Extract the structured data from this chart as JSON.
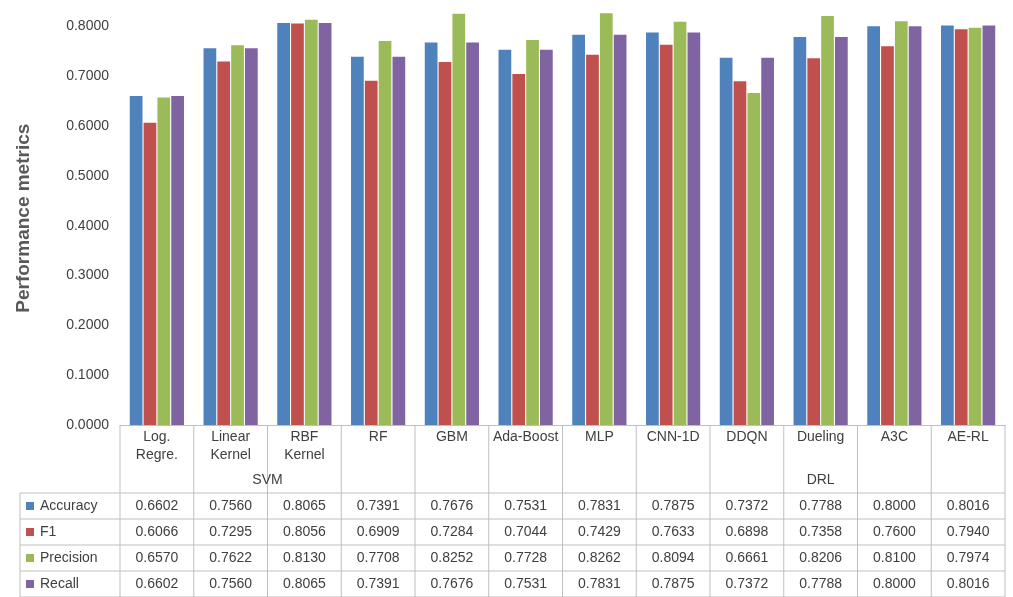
{
  "chart_data": {
    "type": "bar",
    "ylabel": "Performance metrics",
    "categories": [
      "Log. Regre.",
      "Linear Kernel",
      "RBF Kernel",
      "RF",
      "GBM",
      "Ada-Boost",
      "MLP",
      "CNN-1D",
      "DDQN",
      "Dueling",
      "A3C",
      "AE-RL"
    ],
    "series": [
      {
        "name": "Accuracy",
        "color": "#4f81bd",
        "values": [
          0.6602,
          0.756,
          0.8065,
          0.7391,
          0.7676,
          0.7531,
          0.7831,
          0.7875,
          0.7372,
          0.7788,
          0.8,
          0.8016
        ],
        "value_labels": [
          "0.6602",
          "0.7560",
          "0.8065",
          "0.7391",
          "0.7676",
          "0.7531",
          "0.7831",
          "0.7875",
          "0.7372",
          "0.7788",
          "0.8000",
          "0.8016"
        ]
      },
      {
        "name": "F1",
        "color": "#c0504d",
        "values": [
          0.6066,
          0.7295,
          0.8056,
          0.6909,
          0.7284,
          0.7044,
          0.7429,
          0.7633,
          0.6898,
          0.7358,
          0.76,
          0.794
        ],
        "value_labels": [
          "0.6066",
          "0.7295",
          "0.8056",
          "0.6909",
          "0.7284",
          "0.7044",
          "0.7429",
          "0.7633",
          "0.6898",
          "0.7358",
          "0.7600",
          "0.7940"
        ]
      },
      {
        "name": "Precision",
        "color": "#9bbb59",
        "values": [
          0.657,
          0.7622,
          0.813,
          0.7708,
          0.8252,
          0.7728,
          0.8262,
          0.8094,
          0.6661,
          0.8206,
          0.81,
          0.7974
        ],
        "value_labels": [
          "0.6570",
          "0.7622",
          "0.8130",
          "0.7708",
          "0.8252",
          "0.7728",
          "0.8262",
          "0.8094",
          "0.6661",
          "0.8206",
          "0.8100",
          "0.7974"
        ]
      },
      {
        "name": "Recall",
        "color": "#8064a2",
        "values": [
          0.6602,
          0.756,
          0.8065,
          0.7391,
          0.7676,
          0.7531,
          0.7831,
          0.7875,
          0.7372,
          0.7788,
          0.8,
          0.8016
        ],
        "value_labels": [
          "0.6602",
          "0.7560",
          "0.8065",
          "0.7391",
          "0.7676",
          "0.7531",
          "0.7831",
          "0.7875",
          "0.7372",
          "0.7788",
          "0.8000",
          "0.8016"
        ]
      }
    ],
    "ylim": [
      0,
      0.83
    ],
    "yticks": [
      {
        "value": 0,
        "label": "0.0000"
      },
      {
        "value": 0.1,
        "label": "0.1000"
      },
      {
        "value": 0.2,
        "label": "0.2000"
      },
      {
        "value": 0.3,
        "label": "0.3000"
      },
      {
        "value": 0.4,
        "label": "0.4000"
      },
      {
        "value": 0.5,
        "label": "0.5000"
      },
      {
        "value": 0.6,
        "label": "0.6000"
      },
      {
        "value": 0.7,
        "label": "0.7000"
      },
      {
        "value": 0.8,
        "label": "0.8000"
      }
    ],
    "annotations": [
      "SVM",
      "DRL"
    ],
    "legend": "bottom",
    "grid": false
  }
}
